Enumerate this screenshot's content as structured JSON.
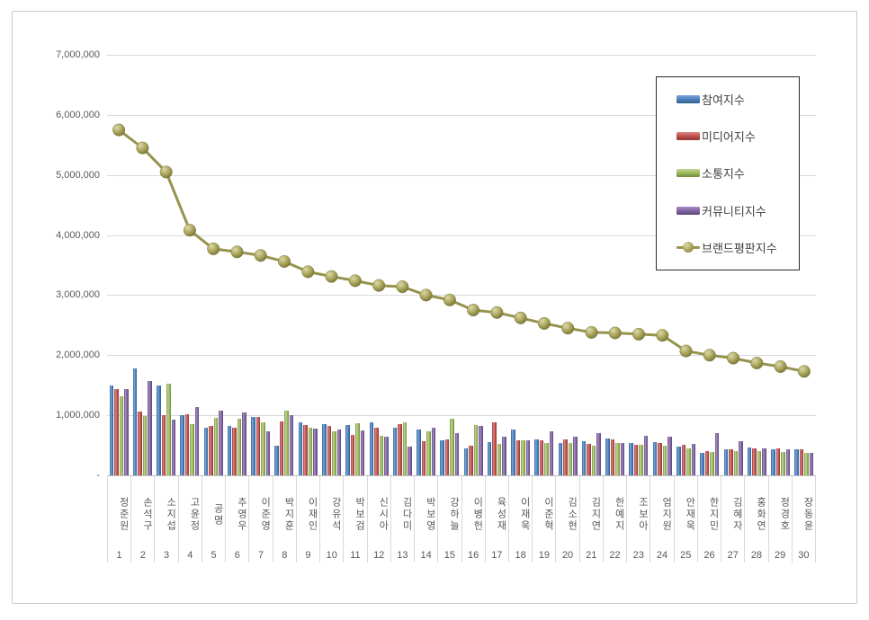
{
  "chart_data": {
    "type": "bar",
    "title": "",
    "xlabel": "",
    "ylabel": "",
    "ylim": [
      0,
      7000000
    ],
    "grid": true,
    "legend_position": "upper-right-box",
    "yticks": [
      {
        "label": "7,000,000",
        "value": 7000000
      },
      {
        "label": "6,000,000",
        "value": 6000000
      },
      {
        "label": "5,000,000",
        "value": 5000000
      },
      {
        "label": "4,000,000",
        "value": 4000000
      },
      {
        "label": "3,000,000",
        "value": 3000000
      },
      {
        "label": "2,000,000",
        "value": 2000000
      },
      {
        "label": "1,000,000",
        "value": 1000000
      },
      {
        "label": "-",
        "value": 0
      }
    ],
    "categories": [
      "정준원",
      "손석구",
      "소지섭",
      "고윤정",
      "공명",
      "추영우",
      "이준영",
      "박지훈",
      "이재인",
      "강유석",
      "박보검",
      "신시아",
      "김다미",
      "박보영",
      "강하늘",
      "이병헌",
      "육성재",
      "이재욱",
      "이준혁",
      "김소현",
      "김지연",
      "한예지",
      "조보아",
      "엄지원",
      "안재욱",
      "한지민",
      "김혜자",
      "홍화연",
      "정경호",
      "장동윤"
    ],
    "ranks": [
      "1",
      "2",
      "3",
      "4",
      "5",
      "6",
      "7",
      "8",
      "9",
      "10",
      "11",
      "12",
      "13",
      "14",
      "15",
      "16",
      "17",
      "18",
      "19",
      "20",
      "21",
      "22",
      "23",
      "24",
      "25",
      "26",
      "27",
      "28",
      "29",
      "30"
    ],
    "series": [
      {
        "name": "참여지수",
        "type": "bar",
        "color": "#4e81bd",
        "colorDark": "#2c5d8f",
        "colorLight": "#7da7d8",
        "values": [
          1500000,
          1780000,
          1500000,
          1000000,
          800000,
          820000,
          980000,
          490000,
          890000,
          850000,
          840000,
          880000,
          800000,
          760000,
          590000,
          450000,
          550000,
          770000,
          600000,
          540000,
          570000,
          610000,
          540000,
          550000,
          480000,
          380000,
          430000,
          460000,
          440000,
          440000
        ]
      },
      {
        "name": "미디어지수",
        "type": "bar",
        "color": "#c0504d",
        "colorDark": "#8e3836",
        "colorLight": "#dc8684",
        "values": [
          1430000,
          1070000,
          1000000,
          1020000,
          830000,
          790000,
          980000,
          900000,
          840000,
          830000,
          680000,
          800000,
          860000,
          570000,
          600000,
          500000,
          880000,
          590000,
          590000,
          600000,
          530000,
          600000,
          510000,
          540000,
          510000,
          410000,
          440000,
          450000,
          450000,
          440000
        ]
      },
      {
        "name": "소통지수",
        "type": "bar",
        "color": "#9bbb59",
        "colorDark": "#71893f",
        "colorLight": "#c3d69b",
        "values": [
          1320000,
          990000,
          1520000,
          850000,
          960000,
          940000,
          880000,
          1080000,
          790000,
          740000,
          870000,
          660000,
          880000,
          740000,
          950000,
          840000,
          520000,
          580000,
          540000,
          540000,
          500000,
          540000,
          510000,
          500000,
          450000,
          390000,
          400000,
          410000,
          390000,
          380000
        ]
      },
      {
        "name": "커뮤니티지수",
        "type": "bar",
        "color": "#8064a2",
        "colorDark": "#5c4776",
        "colorLight": "#a98fc7",
        "values": [
          1440000,
          1570000,
          930000,
          1140000,
          1080000,
          1050000,
          740000,
          1000000,
          780000,
          770000,
          750000,
          650000,
          480000,
          790000,
          700000,
          830000,
          650000,
          580000,
          730000,
          640000,
          700000,
          540000,
          660000,
          650000,
          530000,
          710000,
          570000,
          450000,
          440000,
          370000
        ]
      }
    ],
    "line_series": {
      "name": "브랜드평판지수",
      "type": "line",
      "color": "#97934e",
      "markerLight": "#dcd9ad",
      "markerMid": "#aca85c",
      "markerDark": "#716d33",
      "values": [
        5750000,
        5450000,
        5050000,
        4080000,
        3770000,
        3720000,
        3660000,
        3560000,
        3390000,
        3310000,
        3240000,
        3160000,
        3140000,
        3000000,
        2920000,
        2750000,
        2710000,
        2620000,
        2530000,
        2450000,
        2380000,
        2370000,
        2350000,
        2330000,
        2070000,
        2000000,
        1950000,
        1870000,
        1810000,
        1730000
      ]
    }
  }
}
